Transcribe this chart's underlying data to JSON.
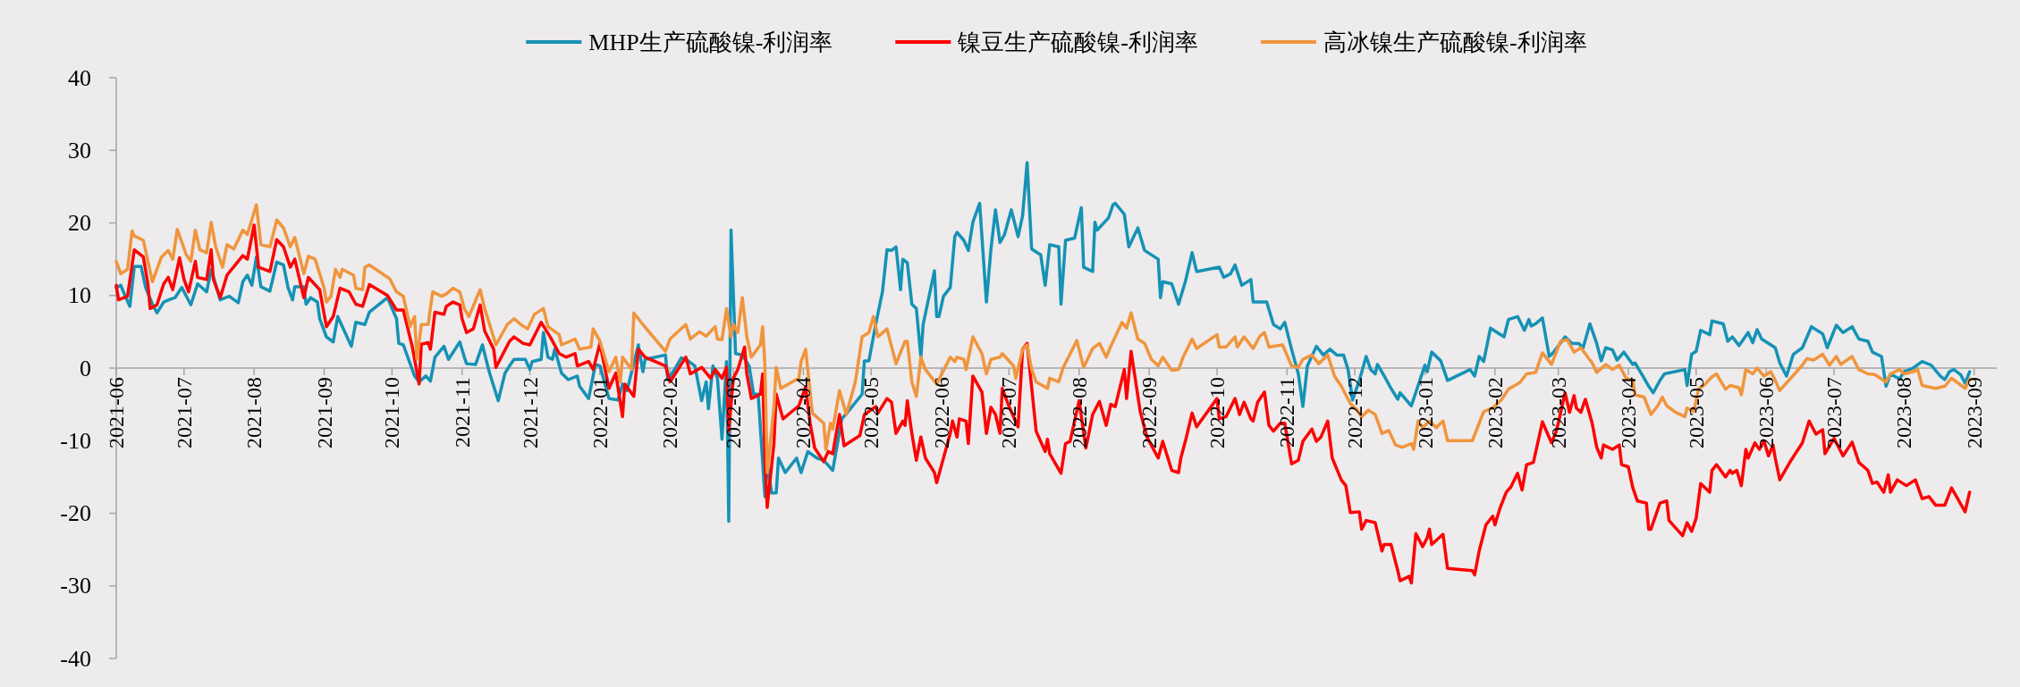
{
  "chart_data": {
    "type": "line",
    "legend": "top",
    "xlim": [
      "2021-06-01",
      "2023-09-11"
    ],
    "ylim": [
      -40,
      40
    ],
    "yticks": [
      -40,
      -30,
      -20,
      -10,
      0,
      10,
      20,
      30,
      40
    ],
    "xticks": [
      "2021-06",
      "2021-07",
      "2021-08",
      "2021-09",
      "2021-10",
      "2021-11",
      "2021-12",
      "2022-01",
      "2022-02",
      "2022-03",
      "2022-04",
      "2022-05",
      "2022-06",
      "2022-07",
      "2022-08",
      "2022-09",
      "2022-10",
      "2022-11",
      "2022-12",
      "2023-01",
      "2023-02",
      "2023-03",
      "2023-04",
      "2023-05",
      "2023-06",
      "2023-07",
      "2023-08",
      "2023-09"
    ],
    "series": [
      {
        "name": "MHP生产硫酸镍-利润率",
        "color": "#1592b5",
        "x": [
          "2021-06-01",
          "2021-06-03",
          "2021-06-05",
          "2021-06-07",
          "2021-06-09",
          "2021-06-12",
          "2021-06-14",
          "2021-06-17",
          "2021-06-19",
          "2021-06-22",
          "2021-06-25",
          "2021-06-27",
          "2021-06-30",
          "2021-07-04",
          "2021-07-07",
          "2021-07-11",
          "2021-07-13",
          "2021-07-17",
          "2021-07-21",
          "2021-07-25",
          "2021-07-27",
          "2021-07-29",
          "2021-07-31",
          "2021-08-02",
          "2021-08-04",
          "2021-08-08",
          "2021-08-11",
          "2021-08-14",
          "2021-08-16",
          "2021-08-18",
          "2021-08-19",
          "2021-08-23",
          "2021-08-24",
          "2021-08-26",
          "2021-08-29",
          "2021-08-30",
          "2021-09-02",
          "2021-09-05",
          "2021-09-07",
          "2021-09-13",
          "2021-09-15",
          "2021-09-19",
          "2021-09-21",
          "2021-09-29",
          "2021-10-03",
          "2021-10-04",
          "2021-10-06",
          "2021-10-11",
          "2021-10-13",
          "2021-10-16",
          "2021-10-18",
          "2021-10-20",
          "2021-10-24",
          "2021-10-26",
          "2021-10-31",
          "2021-11-02",
          "2021-11-03",
          "2021-11-07",
          "2021-11-10",
          "2021-11-13",
          "2021-11-17",
          "2021-11-20",
          "2021-11-22",
          "2021-11-24",
          "2021-11-29",
          "2021-12-01",
          "2021-12-02",
          "2021-12-06",
          "2021-12-07",
          "2021-12-09",
          "2021-12-11",
          "2021-12-12",
          "2021-12-15",
          "2021-12-18",
          "2021-12-22",
          "2021-12-23",
          "2021-12-27",
          "2021-12-30",
          "2022-01-01",
          "2022-01-05",
          "2022-01-09",
          "2022-01-11",
          "2022-01-13",
          "2022-01-18",
          "2022-01-20",
          "2022-01-21",
          "2022-01-30",
          "2022-01-31",
          "2022-02-03",
          "2022-02-06",
          "2022-02-09",
          "2022-02-12",
          "2022-02-15",
          "2022-02-17",
          "2022-02-18",
          "2022-02-20",
          "2022-02-22",
          "2022-02-24",
          "2022-02-26",
          "2022-02-27",
          "2022-02-28",
          "2022-03-02",
          "2022-03-05",
          "2022-03-08",
          "2022-03-10",
          "2022-03-12",
          "2022-03-15",
          "2022-03-16",
          "2022-03-18",
          "2022-03-20",
          "2022-03-21",
          "2022-03-24",
          "2022-03-29",
          "2022-03-31",
          "2022-04-03",
          "2022-04-07",
          "2022-04-10",
          "2022-04-14",
          "2022-04-18",
          "2022-04-20",
          "2022-04-27",
          "2022-04-28",
          "2022-04-30",
          "2022-05-03",
          "2022-05-06",
          "2022-05-08",
          "2022-05-10",
          "2022-05-12",
          "2022-05-14",
          "2022-05-15",
          "2022-05-17",
          "2022-05-19",
          "2022-05-21",
          "2022-05-23",
          "2022-05-24",
          "2022-05-29",
          "2022-05-30",
          "2022-05-31",
          "2022-06-02",
          "2022-06-05",
          "2022-06-07",
          "2022-06-08",
          "2022-06-11",
          "2022-06-13",
          "2022-06-15",
          "2022-06-18",
          "2022-06-21",
          "2022-06-23",
          "2022-06-25",
          "2022-06-27",
          "2022-06-29",
          "2022-07-02",
          "2022-07-05",
          "2022-07-07",
          "2022-07-09",
          "2022-07-11",
          "2022-07-15",
          "2022-07-17",
          "2022-07-19",
          "2022-07-23",
          "2022-07-24",
          "2022-07-26",
          "2022-07-30",
          "2022-08-02",
          "2022-08-03",
          "2022-08-07",
          "2022-08-08",
          "2022-08-09",
          "2022-08-14",
          "2022-08-16",
          "2022-08-17",
          "2022-08-21",
          "2022-08-23",
          "2022-08-27",
          "2022-08-30",
          "2022-09-05",
          "2022-09-06",
          "2022-09-07",
          "2022-09-11",
          "2022-09-14",
          "2022-09-17",
          "2022-09-20",
          "2022-09-22",
          "2022-10-02",
          "2022-10-04",
          "2022-10-07",
          "2022-10-09",
          "2022-10-12",
          "2022-10-16",
          "2022-10-17",
          "2022-10-23",
          "2022-10-26",
          "2022-10-29",
          "2022-10-31",
          "2022-11-03",
          "2022-11-06",
          "2022-11-08",
          "2022-11-10",
          "2022-11-14",
          "2022-11-17",
          "2022-11-20",
          "2022-11-23",
          "2022-11-26",
          "2022-11-28",
          "2022-11-30",
          "2022-12-03",
          "2022-12-06",
          "2022-12-08",
          "2022-12-10",
          "2022-12-11",
          "2022-12-14",
          "2022-12-17",
          "2022-12-20",
          "2022-12-21",
          "2022-12-26",
          "2023-01-01",
          "2023-01-02",
          "2023-01-04",
          "2023-01-08",
          "2023-01-11",
          "2023-01-21",
          "2023-01-23",
          "2023-01-25",
          "2023-01-27",
          "2023-01-30",
          "2023-02-02",
          "2023-02-05",
          "2023-02-07",
          "2023-02-11",
          "2023-02-14",
          "2023-02-16",
          "2023-02-17",
          "2023-02-19",
          "2023-02-22",
          "2023-02-25",
          "2023-02-27",
          "2023-03-04",
          "2023-03-07",
          "2023-03-10",
          "2023-03-12",
          "2023-03-15",
          "2023-03-18",
          "2023-03-20",
          "2023-03-22",
          "2023-03-25",
          "2023-03-27",
          "2023-03-30",
          "2023-04-03",
          "2023-04-04",
          "2023-04-08",
          "2023-04-10",
          "2023-04-12",
          "2023-04-15",
          "2023-04-17",
          "2023-04-26",
          "2023-04-27",
          "2023-04-29",
          "2023-05-01",
          "2023-05-03",
          "2023-05-07",
          "2023-05-08",
          "2023-05-13",
          "2023-05-15",
          "2023-05-17",
          "2023-05-20",
          "2023-05-22",
          "2023-05-24",
          "2023-05-26",
          "2023-05-28",
          "2023-05-30",
          "2023-06-05",
          "2023-06-07",
          "2023-06-10",
          "2023-06-13",
          "2023-06-17",
          "2023-06-21",
          "2023-06-26",
          "2023-06-28",
          "2023-07-02",
          "2023-07-05",
          "2023-07-09",
          "2023-07-12",
          "2023-07-16",
          "2023-07-18",
          "2023-07-22",
          "2023-07-24",
          "2023-07-26",
          "2023-07-30",
          "2023-08-01",
          "2023-08-05",
          "2023-08-09",
          "2023-08-13",
          "2023-08-17",
          "2023-08-19",
          "2023-08-21",
          "2023-08-23",
          "2023-08-26",
          "2023-08-28",
          "2023-08-30"
        ],
        "values": [
          11.1,
          11.4,
          9.9,
          8.5,
          14,
          14,
          11.1,
          8.8,
          7.6,
          9.1,
          9.5,
          9.7,
          11.1,
          8.7,
          11.6,
          10.5,
          13.6,
          9.4,
          9.9,
          9,
          11.9,
          12.8,
          11.4,
          15.3,
          11.2,
          10.6,
          14.6,
          14.2,
          11.1,
          9.4,
          11.2,
          11.2,
          8.8,
          9.7,
          9.1,
          6.8,
          4.3,
          3.6,
          7.1,
          3,
          6.3,
          6,
          7.7,
          9.7,
          6.8,
          3.4,
          3.2,
          -1.1,
          -1.9,
          -1.1,
          -1.8,
          1.5,
          3,
          1.2,
          3.6,
          1.5,
          0.6,
          0.5,
          3.2,
          -0.5,
          -4.5,
          -0.7,
          0.3,
          1.2,
          1.2,
          -0.2,
          0.9,
          1.2,
          4.9,
          1.5,
          1.2,
          2.6,
          -0.7,
          -1.6,
          -1.1,
          -2.5,
          -4.2,
          0.5,
          0.3,
          -4.2,
          -4.4,
          -2.2,
          -3.1,
          3.2,
          -0.5,
          1.2,
          1.8,
          -1.6,
          -0.2,
          1.4,
          1,
          0.3,
          -4.5,
          -1.9,
          -5.6,
          0.3,
          -1.4,
          -9.8,
          0.9,
          -21.1,
          19,
          2,
          1.8,
          0.3,
          -3.6,
          -3.6,
          -17.7,
          -13.2,
          -17.2,
          -17.2,
          -12.4,
          -14.4,
          -12.4,
          -14.4,
          -11.5,
          -12.4,
          -12.7,
          -14.1,
          -7,
          -6.3,
          -3.6,
          1,
          1,
          6,
          10.5,
          16.3,
          16.2,
          16.7,
          10.8,
          15,
          14.5,
          8.8,
          8.2,
          1.5,
          6,
          13.4,
          7.1,
          7.1,
          9.9,
          11.1,
          18.1,
          18.7,
          17.6,
          16.2,
          20.1,
          22.7,
          9.1,
          16.4,
          21.8,
          17.3,
          18.4,
          21.8,
          18.1,
          21,
          28.3,
          16.4,
          15.6,
          11.4,
          17,
          16.7,
          8.8,
          17.6,
          17.9,
          22.1,
          13.9,
          13.3,
          20.1,
          19,
          20.7,
          22.5,
          22.7,
          21.2,
          16.7,
          19.3,
          16.2,
          15,
          9.7,
          11.9,
          11.6,
          8.8,
          11.9,
          15.9,
          13.3,
          13.9,
          12.5,
          13,
          14.2,
          11.4,
          12.2,
          9.1,
          9.1,
          6,
          5.4,
          6.3,
          2.6,
          -0.8,
          -5.3,
          0.3,
          3,
          1.8,
          2.6,
          1.8,
          1.8,
          -0.2,
          -4.4,
          -1.7,
          1.6,
          -0.2,
          -0.8,
          0.5,
          -1.1,
          -2.8,
          -4.3,
          -3.4,
          -5.2,
          0.4,
          -0.5,
          2.2,
          1,
          -1.7,
          -0.2,
          -1.1,
          1.6,
          0.9,
          5.5,
          4.9,
          4.3,
          6.7,
          7.1,
          5.2,
          6.7,
          5.8,
          6.1,
          6.9,
          1.6,
          2.2,
          4.3,
          3.4,
          3.4,
          2.8,
          6.1,
          3.4,
          1,
          2.8,
          2.5,
          1.1,
          2.2,
          0.5,
          0.7,
          -1.4,
          -2.5,
          -3.4,
          -1.7,
          -0.8,
          -0.2,
          -2.4,
          1.9,
          2.3,
          5.2,
          4.6,
          6.5,
          6.1,
          3.7,
          4.3,
          3.1,
          4,
          4.9,
          3.5,
          5.3,
          4,
          2.8,
          0.7,
          -1.1,
          1.9,
          2.8,
          5.7,
          4.7,
          2.8,
          5.9,
          4.9,
          5.7,
          4,
          3.7,
          2.2,
          1.6,
          -2.5,
          -0.8,
          -1.5,
          -0.5,
          0,
          0.9,
          0.4,
          -1.1,
          -1.6,
          -0.5,
          -0.2,
          -0.9,
          -2.1,
          -0.5
        ]
      },
      {
        "name": "镍豆生产硫酸镍-利润率",
        "color": "#ff0000",
        "x": [
          "2021-06-01",
          "2021-06-02",
          "2021-06-06",
          "2021-06-09",
          "2021-06-13",
          "2021-06-15",
          "2021-06-16",
          "2021-06-19",
          "2021-06-22",
          "2021-06-24",
          "2021-06-26",
          "2021-06-29",
          "2021-07-01",
          "2021-07-03",
          "2021-07-06",
          "2021-07-07",
          "2021-07-11",
          "2021-07-13",
          "2021-07-14",
          "2021-07-17",
          "2021-07-20",
          "2021-07-27",
          "2021-07-29",
          "2021-08-01",
          "2021-08-03",
          "2021-08-08",
          "2021-08-11",
          "2021-08-14",
          "2021-08-17",
          "2021-08-19",
          "2021-08-23",
          "2021-08-25",
          "2021-08-30",
          "2021-09-02",
          "2021-09-05",
          "2021-09-08",
          "2021-09-12",
          "2021-09-15",
          "2021-09-18",
          "2021-09-21",
          "2021-09-29",
          "2021-10-03",
          "2021-10-06",
          "2021-10-10",
          "2021-10-13",
          "2021-10-14",
          "2021-10-17",
          "2021-10-18",
          "2021-10-20",
          "2021-10-24",
          "2021-10-25",
          "2021-10-28",
          "2021-10-31",
          "2021-11-01",
          "2021-11-03",
          "2021-11-06",
          "2021-11-09",
          "2021-11-11",
          "2021-11-15",
          "2021-11-16",
          "2021-11-22",
          "2021-11-24",
          "2021-11-28",
          "2021-12-01",
          "2021-12-06",
          "2021-12-10",
          "2021-12-14",
          "2021-12-17",
          "2021-12-21",
          "2021-12-22",
          "2021-12-27",
          "2021-12-29",
          "2022-01-01",
          "2022-01-05",
          "2022-01-08",
          "2022-01-11",
          "2022-01-12",
          "2022-01-16",
          "2022-01-18",
          "2022-01-21",
          "2022-01-30",
          "2022-02-01",
          "2022-02-08",
          "2022-02-10",
          "2022-02-15",
          "2022-02-19",
          "2022-02-21",
          "2022-02-24",
          "2022-02-26",
          "2022-02-27",
          "2022-03-01",
          "2022-03-03",
          "2022-03-06",
          "2022-03-07",
          "2022-03-09",
          "2022-03-13",
          "2022-03-14",
          "2022-03-15",
          "2022-03-16",
          "2022-03-19",
          "2022-03-20",
          "2022-03-23",
          "2022-03-30",
          "2022-04-02",
          "2022-04-04",
          "2022-04-06",
          "2022-04-10",
          "2022-04-12",
          "2022-04-14",
          "2022-04-17",
          "2022-04-19",
          "2022-04-26",
          "2022-04-28",
          "2022-05-03",
          "2022-05-04",
          "2022-05-08",
          "2022-05-10",
          "2022-05-12",
          "2022-05-15",
          "2022-05-16",
          "2022-05-17",
          "2022-05-19",
          "2022-05-21",
          "2022-05-23",
          "2022-05-25",
          "2022-05-29",
          "2022-05-30",
          "2022-06-05",
          "2022-06-06",
          "2022-06-08",
          "2022-06-09",
          "2022-06-12",
          "2022-06-13",
          "2022-06-15",
          "2022-06-19",
          "2022-06-21",
          "2022-06-23",
          "2022-06-25",
          "2022-06-27",
          "2022-06-28",
          "2022-07-01",
          "2022-07-03",
          "2022-07-05",
          "2022-07-07",
          "2022-07-09",
          "2022-07-13",
          "2022-07-17",
          "2022-07-18",
          "2022-07-19",
          "2022-07-24",
          "2022-07-26",
          "2022-07-28",
          "2022-08-01",
          "2022-08-04",
          "2022-08-07",
          "2022-08-10",
          "2022-08-13",
          "2022-08-15",
          "2022-08-17",
          "2022-08-21",
          "2022-08-22",
          "2022-08-24",
          "2022-08-28",
          "2022-08-31",
          "2022-09-05",
          "2022-09-07",
          "2022-09-11",
          "2022-09-14",
          "2022-09-15",
          "2022-09-17",
          "2022-09-20",
          "2022-09-22",
          "2022-10-01",
          "2022-10-02",
          "2022-10-05",
          "2022-10-09",
          "2022-10-11",
          "2022-10-13",
          "2022-10-16",
          "2022-10-17",
          "2022-10-19",
          "2022-10-22",
          "2022-10-24",
          "2022-10-26",
          "2022-10-29",
          "2022-10-31",
          "2022-11-03",
          "2022-11-06",
          "2022-11-08",
          "2022-11-12",
          "2022-11-14",
          "2022-11-16",
          "2022-11-19",
          "2022-11-21",
          "2022-11-25",
          "2022-11-27",
          "2022-11-29",
          "2022-12-03",
          "2022-12-04",
          "2022-12-06",
          "2022-12-10",
          "2022-12-13",
          "2022-12-14",
          "2022-12-17",
          "2022-12-20",
          "2022-12-21",
          "2022-12-25",
          "2022-12-26",
          "2022-12-28",
          "2022-12-31",
          "2023-01-02",
          "2023-01-03",
          "2023-01-04",
          "2023-01-09",
          "2023-01-11",
          "2023-01-22",
          "2023-01-23",
          "2023-01-25",
          "2023-01-28",
          "2023-01-31",
          "2023-02-01",
          "2023-02-03",
          "2023-02-06",
          "2023-02-08",
          "2023-02-11",
          "2023-02-13",
          "2023-02-15",
          "2023-02-18",
          "2023-02-22",
          "2023-02-26",
          "2023-02-28",
          "2023-03-01",
          "2023-03-04",
          "2023-03-06",
          "2023-03-08",
          "2023-03-09",
          "2023-03-11",
          "2023-03-13",
          "2023-03-16",
          "2023-03-18",
          "2023-03-20",
          "2023-03-21",
          "2023-03-25",
          "2023-03-28",
          "2023-03-29",
          "2023-04-01",
          "2023-04-03",
          "2023-04-05",
          "2023-04-09",
          "2023-04-10",
          "2023-04-11",
          "2023-04-13",
          "2023-04-15",
          "2023-04-18",
          "2023-04-19",
          "2023-04-25",
          "2023-04-27",
          "2023-04-29",
          "2023-05-01",
          "2023-05-03",
          "2023-05-07",
          "2023-05-08",
          "2023-05-10",
          "2023-05-14",
          "2023-05-16",
          "2023-05-17",
          "2023-05-19",
          "2023-05-21",
          "2023-05-23",
          "2023-05-24",
          "2023-05-27",
          "2023-05-29",
          "2023-05-31",
          "2023-06-02",
          "2023-06-04",
          "2023-06-05",
          "2023-06-07",
          "2023-06-12",
          "2023-06-17",
          "2023-06-20",
          "2023-06-23",
          "2023-06-26",
          "2023-06-27",
          "2023-07-01",
          "2023-07-05",
          "2023-07-09",
          "2023-07-12",
          "2023-07-16",
          "2023-07-18",
          "2023-07-20",
          "2023-07-23",
          "2023-07-25",
          "2023-07-26",
          "2023-07-29",
          "2023-08-02",
          "2023-08-06",
          "2023-08-09",
          "2023-08-12",
          "2023-08-15",
          "2023-08-19",
          "2023-08-22",
          "2023-08-28",
          "2023-08-30"
        ],
        "values": [
          11.4,
          9.4,
          9.9,
          16.3,
          15.3,
          11.6,
          8.2,
          8.7,
          11.6,
          12.5,
          10.8,
          15.2,
          12.2,
          10.5,
          14.7,
          12.5,
          12.2,
          16.3,
          12.2,
          9.7,
          12.8,
          15.5,
          15,
          19.7,
          13.9,
          13.3,
          17.7,
          16.7,
          13.9,
          15,
          9.7,
          12.5,
          10.8,
          5.7,
          7.1,
          11,
          10.5,
          8.8,
          8.5,
          11.5,
          10,
          8,
          8,
          2.9,
          -2.2,
          3.3,
          3.5,
          2.6,
          7.7,
          7.4,
          8.5,
          9.1,
          8.7,
          6.8,
          4.9,
          5.4,
          8.7,
          5.1,
          2.6,
          0.1,
          3.7,
          4.3,
          3.4,
          3.2,
          6.3,
          4.3,
          2,
          1.5,
          2,
          0.3,
          0.9,
          -0.2,
          3.4,
          -2.8,
          -0.7,
          -6.7,
          -2.2,
          -3.9,
          2.6,
          1.5,
          0.3,
          -1.9,
          1.5,
          -0.8,
          0.1,
          -1.4,
          -0.2,
          -1.4,
          0.1,
          -8.7,
          -1.4,
          -0.2,
          2.9,
          -0.8,
          -4.2,
          -3.6,
          -0.8,
          -12.7,
          -19.2,
          -10.4,
          -3.6,
          -7,
          -5.2,
          -2.6,
          -7.6,
          -11,
          -12.9,
          -11.5,
          -11.8,
          -6.4,
          -10.7,
          -9.3,
          -6.4,
          -5.3,
          -6.2,
          -4.2,
          -4.7,
          -9,
          -7.3,
          -7.9,
          -4.5,
          -9,
          -12.7,
          -9.5,
          -12.4,
          -14.4,
          -15.8,
          -9,
          -7.3,
          -9.5,
          -7,
          -7.3,
          -10.4,
          -1.1,
          -3.3,
          -9,
          -5.4,
          -6.4,
          -9,
          -2.8,
          -5.3,
          -6.7,
          -8.1,
          2.6,
          3.4,
          -8.7,
          -11.5,
          -9.8,
          -11.8,
          -14.5,
          -10.4,
          -10.1,
          -4.5,
          -11,
          -6.4,
          -4.6,
          -7.9,
          -5,
          -5.3,
          -0.2,
          -4.2,
          2.3,
          -5.9,
          -9.5,
          -12.4,
          -10.1,
          -14.1,
          -14.4,
          -12.4,
          -10.1,
          -6.2,
          -8.1,
          -4.2,
          -7,
          -6.7,
          -4.2,
          -6.4,
          -4.7,
          -7,
          -7.3,
          -4.7,
          -3.3,
          -7.9,
          -8.7,
          -7.6,
          -7.6,
          -13.2,
          -12.7,
          -10.1,
          -8.4,
          -10.1,
          -9.5,
          -7.3,
          -12.4,
          -15.4,
          -16.2,
          -19.9,
          -19.8,
          -22.2,
          -21,
          -21.3,
          -25.2,
          -24.3,
          -24.3,
          -27.9,
          -29.3,
          -28.7,
          -29.6,
          -22.8,
          -24.6,
          -23.4,
          -22.2,
          -24.3,
          -22.9,
          -27.6,
          -27.9,
          -28.5,
          -25.2,
          -21.6,
          -20.4,
          -21.6,
          -19.5,
          -17.1,
          -16.4,
          -14.5,
          -16.8,
          -13.3,
          -13,
          -7.4,
          -10.3,
          -8.8,
          -7.6,
          -3.4,
          -6.1,
          -3.8,
          -5.5,
          -6.1,
          -4.3,
          -7.6,
          -10.9,
          -12.4,
          -10.6,
          -11.2,
          -10.6,
          -13.3,
          -13.6,
          -16.5,
          -18.3,
          -18.6,
          -22.2,
          -22.2,
          -20.4,
          -18.6,
          -18.3,
          -21,
          -23.1,
          -21.3,
          -22.5,
          -20.7,
          -15.9,
          -17.1,
          -14.1,
          -13.3,
          -15,
          -14.1,
          -14.5,
          -14.1,
          -16.2,
          -11.2,
          -12.4,
          -10.3,
          -11.2,
          -10,
          -12.1,
          -10.6,
          -12.4,
          -15.4,
          -12.7,
          -10.3,
          -7.3,
          -9.1,
          -8.5,
          -11.8,
          -9.7,
          -12.1,
          -10.2,
          -13,
          -14.1,
          -15.9,
          -15.7,
          -17.1,
          -14.7,
          -17.1,
          -15.4,
          -16.2,
          -15.4,
          -18,
          -17.7,
          -18.9,
          -18.9,
          -16.5,
          -19.8,
          -17.1
        ]
      },
      {
        "name": "高冰镍生产硫酸镍-利润率",
        "color": "#f0953d",
        "x": [
          "2021-06-01",
          "2021-06-03",
          "2021-06-06",
          "2021-06-08",
          "2021-06-09",
          "2021-06-13",
          "2021-06-16",
          "2021-06-17",
          "2021-06-21",
          "2021-06-24",
          "2021-06-26",
          "2021-06-28",
          "2021-07-02",
          "2021-07-04",
          "2021-07-06",
          "2021-07-08",
          "2021-07-11",
          "2021-07-13",
          "2021-07-15",
          "2021-07-18",
          "2021-07-20",
          "2021-07-23",
          "2021-07-27",
          "2021-07-29",
          "2021-08-02",
          "2021-08-04",
          "2021-08-08",
          "2021-08-11",
          "2021-08-14",
          "2021-08-17",
          "2021-08-19",
          "2021-08-23",
          "2021-08-25",
          "2021-08-28",
          "2021-09-01",
          "2021-09-02",
          "2021-09-04",
          "2021-09-06",
          "2021-09-08",
          "2021-09-09",
          "2021-09-14",
          "2021-09-15",
          "2021-09-18",
          "2021-09-19",
          "2021-09-21",
          "2021-09-30",
          "2021-10-03",
          "2021-10-06",
          "2021-10-09",
          "2021-10-11",
          "2021-10-12",
          "2021-10-14",
          "2021-10-17",
          "2021-10-19",
          "2021-10-23",
          "2021-10-25",
          "2021-10-28",
          "2021-10-31",
          "2021-11-02",
          "2021-11-04",
          "2021-11-09",
          "2021-11-11",
          "2021-11-16",
          "2021-11-21",
          "2021-11-24",
          "2021-11-27",
          "2021-11-30",
          "2021-12-03",
          "2021-12-07",
          "2021-12-09",
          "2021-12-14",
          "2021-12-15",
          "2021-12-21",
          "2021-12-23",
          "2021-12-28",
          "2021-12-29",
          "2022-01-01",
          "2022-01-05",
          "2022-01-08",
          "2022-01-10",
          "2022-01-11",
          "2022-01-15",
          "2022-01-16",
          "2022-01-20",
          "2022-01-30",
          "2022-02-01",
          "2022-02-08",
          "2022-02-10",
          "2022-02-14",
          "2022-02-17",
          "2022-02-21",
          "2022-02-22",
          "2022-02-24",
          "2022-02-26",
          "2022-02-28",
          "2022-03-01",
          "2022-03-03",
          "2022-03-05",
          "2022-03-07",
          "2022-03-09",
          "2022-03-13",
          "2022-03-14",
          "2022-03-15",
          "2022-03-16",
          "2022-03-19",
          "2022-03-20",
          "2022-03-22",
          "2022-03-30",
          "2022-03-31",
          "2022-04-02",
          "2022-04-05",
          "2022-04-10",
          "2022-04-11",
          "2022-04-13",
          "2022-04-14",
          "2022-04-17",
          "2022-04-20",
          "2022-04-24",
          "2022-04-27",
          "2022-04-30",
          "2022-05-02",
          "2022-05-04",
          "2022-05-08",
          "2022-05-12",
          "2022-05-16",
          "2022-05-17",
          "2022-05-19",
          "2022-05-21",
          "2022-05-23",
          "2022-05-25",
          "2022-05-30",
          "2022-06-05",
          "2022-06-07",
          "2022-06-08",
          "2022-06-11",
          "2022-06-12",
          "2022-06-15",
          "2022-06-19",
          "2022-06-21",
          "2022-06-23",
          "2022-06-27",
          "2022-06-28",
          "2022-07-03",
          "2022-07-04",
          "2022-07-07",
          "2022-07-09",
          "2022-07-11",
          "2022-07-13",
          "2022-07-18",
          "2022-07-19",
          "2022-07-23",
          "2022-07-25",
          "2022-07-31",
          "2022-08-03",
          "2022-08-07",
          "2022-08-10",
          "2022-08-13",
          "2022-08-15",
          "2022-08-20",
          "2022-08-22",
          "2022-08-24",
          "2022-08-27",
          "2022-08-30",
          "2022-09-02",
          "2022-09-05",
          "2022-09-07",
          "2022-09-11",
          "2022-09-14",
          "2022-09-16",
          "2022-09-20",
          "2022-09-22",
          "2022-10-01",
          "2022-10-02",
          "2022-10-05",
          "2022-10-09",
          "2022-10-10",
          "2022-10-13",
          "2022-10-17",
          "2022-10-20",
          "2022-10-22",
          "2022-10-24",
          "2022-10-30",
          "2022-11-03",
          "2022-11-06",
          "2022-11-08",
          "2022-11-12",
          "2022-11-15",
          "2022-11-19",
          "2022-11-22",
          "2022-11-25",
          "2022-11-29",
          "2022-12-02",
          "2022-12-04",
          "2022-12-07",
          "2022-12-10",
          "2022-12-13",
          "2022-12-16",
          "2022-12-19",
          "2022-12-22",
          "2022-12-26",
          "2022-12-27",
          "2022-12-29",
          "2022-12-31",
          "2023-01-03",
          "2023-01-06",
          "2023-01-09",
          "2023-01-11",
          "2023-01-22",
          "2023-01-27",
          "2023-01-31",
          "2023-02-04",
          "2023-02-07",
          "2023-02-12",
          "2023-02-15",
          "2023-02-19",
          "2023-02-22",
          "2023-02-26",
          "2023-03-02",
          "2023-03-05",
          "2023-03-08",
          "2023-03-11",
          "2023-03-16",
          "2023-03-18",
          "2023-03-22",
          "2023-03-25",
          "2023-03-28",
          "2023-03-31",
          "2023-04-03",
          "2023-04-04",
          "2023-04-08",
          "2023-04-11",
          "2023-04-14",
          "2023-04-16",
          "2023-04-18",
          "2023-04-22",
          "2023-04-26",
          "2023-04-27",
          "2023-04-30",
          "2023-05-02",
          "2023-05-05",
          "2023-05-08",
          "2023-05-10",
          "2023-05-14",
          "2023-05-16",
          "2023-05-20",
          "2023-05-21",
          "2023-05-23",
          "2023-05-26",
          "2023-05-28",
          "2023-05-31",
          "2023-06-03",
          "2023-06-05",
          "2023-06-07",
          "2023-06-17",
          "2023-06-19",
          "2023-06-22",
          "2023-06-26",
          "2023-06-29",
          "2023-07-02",
          "2023-07-04",
          "2023-07-09",
          "2023-07-12",
          "2023-07-16",
          "2023-07-19",
          "2023-07-24",
          "2023-07-26",
          "2023-07-30",
          "2023-08-01",
          "2023-08-05",
          "2023-08-07",
          "2023-08-09",
          "2023-08-15",
          "2023-08-19",
          "2023-08-22",
          "2023-08-28",
          "2023-08-30"
        ],
        "values": [
          14.7,
          13,
          13.6,
          18.9,
          18.2,
          17.6,
          13.3,
          11.9,
          15.3,
          16.2,
          15,
          19.1,
          15.6,
          14.7,
          19,
          16.3,
          15.9,
          20.1,
          16.7,
          13.9,
          17,
          16.4,
          19,
          18.4,
          22.5,
          17,
          16.7,
          20.4,
          19.3,
          16.7,
          18,
          13,
          15.4,
          15,
          11,
          9.1,
          9.9,
          13.6,
          12.5,
          13.6,
          12.8,
          11,
          10.8,
          13.9,
          14.2,
          12.3,
          10.5,
          9.9,
          5.7,
          7.1,
          1.2,
          6,
          6,
          10.5,
          9.9,
          10.2,
          11,
          10.5,
          8.2,
          7.1,
          10.8,
          8.2,
          3.2,
          6,
          6.8,
          6,
          5.4,
          7.4,
          8.2,
          5.7,
          4.6,
          3.2,
          4,
          2.6,
          2.9,
          5.4,
          3.7,
          -0.5,
          1.5,
          -1.9,
          1.5,
          -0.2,
          7.6,
          6,
          2.3,
          4,
          6,
          4,
          5,
          4.4,
          5.7,
          4,
          3.9,
          8.2,
          4.3,
          6,
          4.9,
          9.7,
          4.3,
          1.5,
          3.2,
          5.7,
          0.3,
          -14.4,
          -5.3,
          0.1,
          -2.8,
          -1.4,
          0.9,
          2.6,
          -6.2,
          -7.6,
          -11.2,
          -7.6,
          -8.4,
          -3.1,
          -6.4,
          -1.9,
          4.3,
          4.9,
          7.1,
          4.3,
          5.4,
          0.6,
          3.7,
          3.7,
          -1.9,
          -3.9,
          1.5,
          -0.2,
          -2.2,
          1.5,
          0.9,
          1.5,
          1.2,
          -0.2,
          4.3,
          2,
          -0.8,
          1.2,
          1.5,
          2,
          0.3,
          -1.4,
          2.6,
          3.2,
          -0.2,
          -1.9,
          -2.8,
          -1.4,
          -1.9,
          0.1,
          3.8,
          0.1,
          2.7,
          3.4,
          1.5,
          3,
          6.3,
          5.5,
          7.6,
          4,
          3.4,
          1.2,
          0.3,
          1.5,
          -0.3,
          -0.2,
          1.5,
          4,
          2.7,
          4.6,
          2.9,
          2.9,
          4.3,
          2.9,
          4.3,
          2.7,
          4.4,
          4.9,
          2.9,
          3.2,
          0.3,
          0.1,
          1.2,
          1.8,
          0.6,
          1.8,
          -1.1,
          -2.5,
          -4.9,
          -5.8,
          -6.7,
          -5.8,
          -6.4,
          -9,
          -8.6,
          -10.6,
          -10.9,
          -10.4,
          -11.2,
          -7.3,
          -8.2,
          -7.3,
          -8.2,
          -7.3,
          -10,
          -10,
          -6,
          -5.5,
          -4.3,
          -2.9,
          -2,
          -0.8,
          -0.6,
          2.1,
          0.5,
          3.7,
          3.9,
          2.2,
          2.8,
          0.7,
          -0.6,
          0.5,
          -0.2,
          0.4,
          -1.4,
          -1.7,
          -3.7,
          -4,
          -6.4,
          -5.2,
          -4,
          -5.2,
          -6.1,
          -6.7,
          -5.5,
          -6,
          -2.9,
          -2.2,
          -1.2,
          -0.8,
          -2.9,
          -2.4,
          -2.7,
          -3.7,
          -0.2,
          -0.8,
          0,
          -1.1,
          -0.5,
          -1.7,
          -3.1,
          0.4,
          1.3,
          1.1,
          1.9,
          0.4,
          1.6,
          0.5,
          1.6,
          -0.2,
          -0.8,
          -0.9,
          -1.9,
          -0.8,
          -0.2,
          -0.8,
          -0.5,
          -0.2,
          -2.4,
          -2.8,
          -2.5,
          -1.4,
          -2.8,
          -1.5
        ]
      }
    ]
  }
}
